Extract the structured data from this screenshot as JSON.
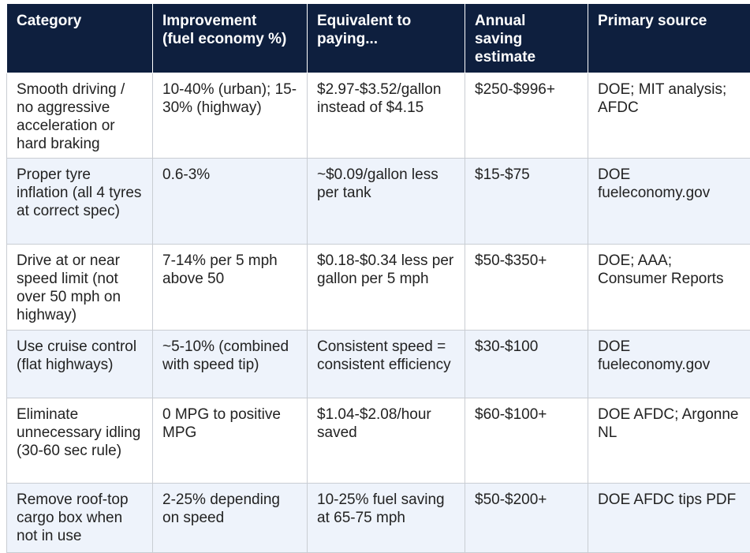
{
  "table": {
    "headers": [
      "Category",
      "Improvement\n(fuel economy %)",
      "Equivalent to\npaying...",
      "Annual\nsaving\nestimate",
      "Primary source"
    ],
    "rows": [
      [
        "Smooth driving / no aggressive acceleration or hard braking",
        "10-40% (urban); 15-30% (highway)",
        "$2.97-$3.52/gallon instead of $4.15",
        "$250-$996+",
        "DOE; MIT analysis; AFDC"
      ],
      [
        "Proper tyre inflation (all 4 tyres at correct spec)",
        "0.6-3%",
        "~$0.09/gallon less per tank",
        "$15-$75",
        "DOE fueleconomy.gov"
      ],
      [
        "Drive at or near speed limit (not over 50 mph on highway)",
        "7-14% per 5 mph above 50",
        "$0.18-$0.34 less per gallon per 5 mph",
        "$50-$350+",
        "DOE; AAA; Consumer Reports"
      ],
      [
        "Use cruise control (flat highways)",
        "~5-10% (combined with speed tip)",
        "Consistent speed = consistent efficiency",
        "$30-$100",
        "DOE fueleconomy.gov"
      ],
      [
        "Eliminate unnecessary idling (30-60 sec rule)",
        "0 MPG to positive MPG",
        "$1.04-$2.08/hour saved",
        "$60-$100+",
        "DOE AFDC; Argonne NL"
      ],
      [
        "Remove roof-top cargo box when not in use",
        "2-25% depending on speed",
        "10-25% fuel saving at 65-75 mph",
        "$50-$200+",
        "DOE AFDC tips PDF"
      ]
    ]
  }
}
